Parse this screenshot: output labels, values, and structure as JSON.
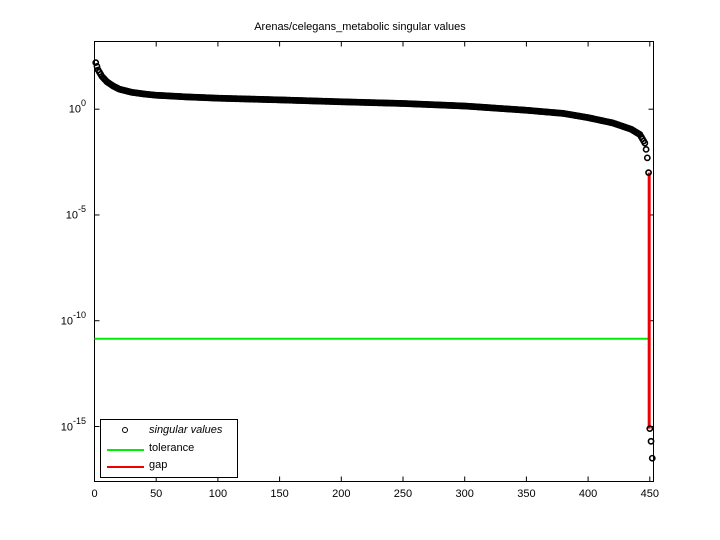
{
  "chart_data": {
    "type": "scatter",
    "title": "Arenas/celegans_metabolic singular values",
    "xlabel": "",
    "ylabel": "",
    "xscale": "linear",
    "yscale": "log",
    "xlim": [
      0,
      453
    ],
    "ylim_exponent": [
      -17.6,
      3.2
    ],
    "x_ticks": [
      0,
      50,
      100,
      150,
      200,
      250,
      300,
      350,
      400,
      450
    ],
    "x_tick_labels": [
      "0",
      "50",
      "100",
      "150",
      "200",
      "250",
      "300",
      "350",
      "400",
      "450"
    ],
    "y_ticks_exponent": [
      0,
      -5,
      -10,
      -15
    ],
    "y_tick_labels": [
      {
        "base": "10",
        "exp": "0"
      },
      {
        "base": "10",
        "exp": "-5"
      },
      {
        "base": "10",
        "exp": "-10"
      },
      {
        "base": "10",
        "exp": "-15"
      }
    ],
    "grid": false,
    "legend_position": "lower left",
    "legend": [
      {
        "label": "singular values",
        "style": "marker",
        "color": "#000000"
      },
      {
        "label": "tolerance",
        "style": "line",
        "color": "#00ee00"
      },
      {
        "label": "gap",
        "style": "line",
        "color": "#ee0000"
      }
    ],
    "series": [
      {
        "name": "singular values",
        "marker": "circle-open",
        "color": "#000000",
        "points_log10": [
          [
            1,
            2.2
          ],
          [
            3,
            1.85
          ],
          [
            6,
            1.55
          ],
          [
            10,
            1.3
          ],
          [
            15,
            1.1
          ],
          [
            20,
            0.95
          ],
          [
            30,
            0.8
          ],
          [
            40,
            0.72
          ],
          [
            50,
            0.66
          ],
          [
            75,
            0.58
          ],
          [
            100,
            0.52
          ],
          [
            150,
            0.44
          ],
          [
            200,
            0.35
          ],
          [
            250,
            0.27
          ],
          [
            300,
            0.15
          ],
          [
            350,
            -0.05
          ],
          [
            380,
            -0.2
          ],
          [
            400,
            -0.4
          ],
          [
            420,
            -0.65
          ],
          [
            435,
            -0.95
          ],
          [
            442,
            -1.2
          ],
          [
            446,
            -1.6
          ],
          [
            447,
            -1.9
          ],
          [
            448,
            -2.3
          ],
          [
            449,
            -3.0
          ],
          [
            450,
            -15.1
          ],
          [
            451,
            -15.7
          ],
          [
            452,
            -16.5
          ]
        ]
      },
      {
        "name": "tolerance",
        "style": "line",
        "color": "#00ee00",
        "y_log10": -10.85,
        "x_range": [
          0,
          450
        ]
      },
      {
        "name": "gap",
        "style": "line",
        "color": "#ee0000",
        "x": 449.5,
        "y_log10_range": [
          -3.0,
          -15.1
        ]
      }
    ]
  }
}
